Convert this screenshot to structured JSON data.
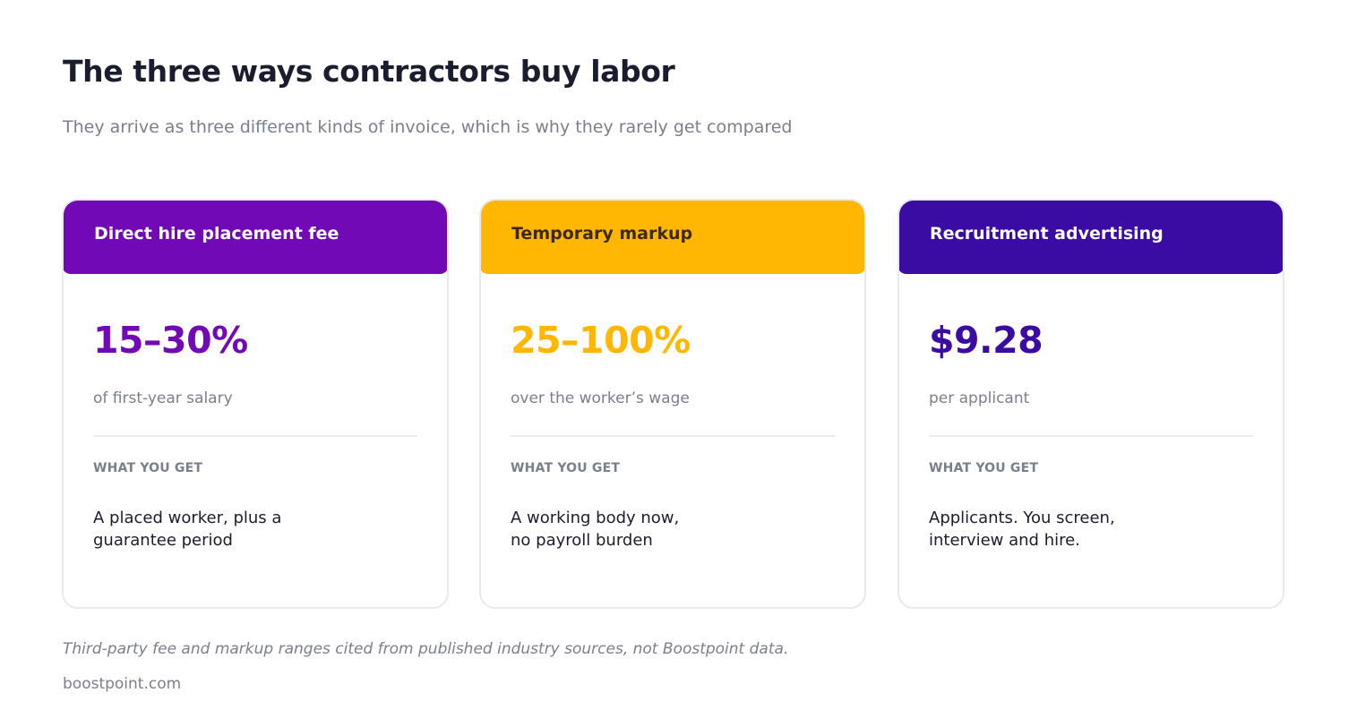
{
  "header": {
    "title": "The three ways contractors buy labor",
    "subtitle": "They arrive as three different kinds of invoice, which is why they rarely get compared"
  },
  "cards": [
    {
      "heading": "Direct hire placement fee",
      "value": "15–30%",
      "unit": "of first-year salary",
      "section_label": "WHAT YOU GET",
      "description_lines": [
        "A placed worker, plus a",
        "guarantee period"
      ],
      "accent_color": "#7209b7"
    },
    {
      "heading": "Temporary markup",
      "value": "25–100%",
      "unit": "over the worker’s wage",
      "section_label": "WHAT YOU GET",
      "description_lines": [
        "A working body now,",
        "no payroll burden"
      ],
      "accent_color": "#ffb703"
    },
    {
      "heading": "Recruitment advertising",
      "value": "$9.28",
      "unit": "per applicant",
      "section_label": "WHAT YOU GET",
      "description_lines": [
        "Applicants. You screen,",
        "interview and hire."
      ],
      "accent_color": "#3a0ca3"
    }
  ],
  "footer": {
    "footnote": "Third-party fee and markup ranges cited from published industry sources, not Boostpoint data.",
    "site": "boostpoint.com"
  }
}
